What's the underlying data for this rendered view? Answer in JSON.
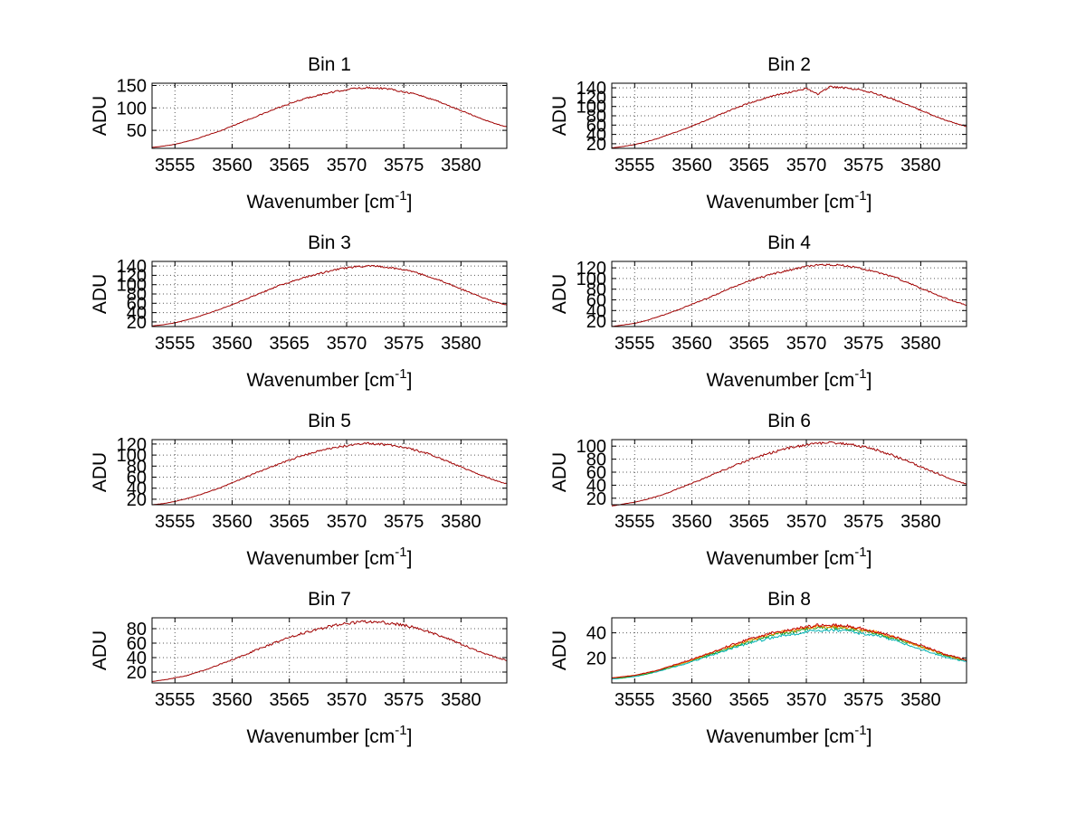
{
  "figure": {
    "background": "#ffffff",
    "description": "4x2 grid of spectral line plots"
  },
  "labels": {
    "xlabel_pre": "Wavenumber [cm",
    "xlabel_sup": "-1",
    "xlabel_post": "]",
    "ylabel": "ADU"
  },
  "chart_data": [
    {
      "type": "line",
      "id": "bin-1",
      "title": "Bin 1",
      "xlabel": "Wavenumber [cm⁻¹]",
      "ylabel": "ADU",
      "xlim": [
        3553,
        3584
      ],
      "ylim": [
        10,
        155
      ],
      "xticks": [
        3555,
        3560,
        3565,
        3570,
        3575,
        3580
      ],
      "yticks": [
        50,
        100,
        150
      ],
      "x_start": 3553,
      "x_step": 1,
      "grid": true,
      "noise": 2.0,
      "series": [
        {
          "name": "spectrum",
          "color": "#a00000",
          "values": [
            12,
            15,
            19,
            25,
            32,
            41,
            49,
            60,
            70,
            80,
            90,
            100,
            109,
            118,
            125,
            131,
            136,
            141,
            144,
            145,
            144,
            141,
            136,
            131,
            123,
            115,
            104,
            94,
            84,
            74,
            65,
            58
          ]
        }
      ]
    },
    {
      "type": "line",
      "id": "bin-2",
      "title": "Bin 2",
      "xlabel": "Wavenumber [cm⁻¹]",
      "ylabel": "ADU",
      "xlim": [
        3553,
        3584
      ],
      "ylim": [
        10,
        150
      ],
      "xticks": [
        3555,
        3560,
        3565,
        3570,
        3575,
        3580
      ],
      "yticks": [
        20,
        40,
        60,
        80,
        100,
        120,
        140
      ],
      "x_start": 3553,
      "x_step": 1,
      "grid": true,
      "noise": 2.0,
      "series": [
        {
          "name": "spectrum",
          "color": "#a00000",
          "values": [
            11,
            14,
            18,
            24,
            31,
            40,
            48,
            58,
            68,
            78,
            88,
            98,
            107,
            115,
            122,
            128,
            133,
            138,
            126,
            142,
            141,
            138,
            134,
            128,
            121,
            112,
            102,
            92,
            82,
            72,
            64,
            57
          ]
        }
      ]
    },
    {
      "type": "line",
      "id": "bin-3",
      "title": "Bin 3",
      "xlabel": "Wavenumber [cm⁻¹]",
      "ylabel": "ADU",
      "xlim": [
        3553,
        3584
      ],
      "ylim": [
        10,
        150
      ],
      "xticks": [
        3555,
        3560,
        3565,
        3570,
        3575,
        3580
      ],
      "yticks": [
        20,
        40,
        60,
        80,
        100,
        120,
        140
      ],
      "x_start": 3553,
      "x_step": 1,
      "grid": true,
      "noise": 2.0,
      "series": [
        {
          "name": "spectrum",
          "color": "#a00000",
          "values": [
            11,
            14,
            18,
            24,
            31,
            39,
            48,
            57,
            67,
            77,
            87,
            97,
            105,
            113,
            120,
            126,
            132,
            136,
            139,
            140,
            139,
            136,
            132,
            126,
            119,
            111,
            101,
            91,
            81,
            71,
            63,
            56
          ]
        }
      ]
    },
    {
      "type": "line",
      "id": "bin-4",
      "title": "Bin 4",
      "xlabel": "Wavenumber [cm⁻¹]",
      "ylabel": "ADU",
      "xlim": [
        3553,
        3584
      ],
      "ylim": [
        10,
        132
      ],
      "xticks": [
        3555,
        3560,
        3565,
        3570,
        3575,
        3580
      ],
      "yticks": [
        20,
        40,
        60,
        80,
        100,
        120
      ],
      "x_start": 3553,
      "x_step": 1,
      "grid": true,
      "noise": 2.0,
      "series": [
        {
          "name": "spectrum",
          "color": "#a00000",
          "values": [
            10,
            13,
            16,
            21,
            28,
            35,
            43,
            52,
            60,
            69,
            78,
            87,
            95,
            102,
            108,
            113,
            118,
            122,
            125,
            126,
            125,
            122,
            118,
            113,
            107,
            100,
            91,
            82,
            73,
            64,
            57,
            50
          ]
        }
      ]
    },
    {
      "type": "line",
      "id": "bin-5",
      "title": "Bin 5",
      "xlabel": "Wavenumber [cm⁻¹]",
      "ylabel": "ADU",
      "xlim": [
        3553,
        3584
      ],
      "ylim": [
        10,
        128
      ],
      "xticks": [
        3555,
        3560,
        3565,
        3570,
        3575,
        3580
      ],
      "yticks": [
        20,
        40,
        60,
        80,
        100,
        120
      ],
      "x_start": 3553,
      "x_step": 1,
      "grid": true,
      "noise": 2.0,
      "series": [
        {
          "name": "spectrum",
          "color": "#a00000",
          "values": [
            10,
            12,
            16,
            21,
            27,
            34,
            41,
            50,
            58,
            67,
            75,
            83,
            91,
            98,
            104,
            109,
            114,
            117,
            120,
            121,
            120,
            117,
            114,
            109,
            103,
            96,
            87,
            79,
            70,
            62,
            54,
            48
          ]
        }
      ]
    },
    {
      "type": "line",
      "id": "bin-6",
      "title": "Bin 6",
      "xlabel": "Wavenumber [cm⁻¹]",
      "ylabel": "ADU",
      "xlim": [
        3553,
        3584
      ],
      "ylim": [
        10,
        110
      ],
      "xticks": [
        3555,
        3560,
        3565,
        3570,
        3575,
        3580
      ],
      "yticks": [
        20,
        40,
        60,
        80,
        100
      ],
      "x_start": 3553,
      "x_step": 1,
      "grid": true,
      "noise": 2.0,
      "series": [
        {
          "name": "spectrum",
          "color": "#a00000",
          "values": [
            8,
            11,
            14,
            18,
            23,
            29,
            36,
            43,
            50,
            58,
            65,
            72,
            79,
            85,
            90,
            95,
            99,
            102,
            104,
            105,
            104,
            102,
            99,
            95,
            89,
            83,
            76,
            68,
            61,
            54,
            47,
            42
          ]
        }
      ]
    },
    {
      "type": "line",
      "id": "bin-7",
      "title": "Bin 7",
      "xlabel": "Wavenumber [cm⁻¹]",
      "ylabel": "ADU",
      "xlim": [
        3553,
        3584
      ],
      "ylim": [
        5,
        95
      ],
      "xticks": [
        3555,
        3560,
        3565,
        3570,
        3575,
        3580
      ],
      "yticks": [
        20,
        40,
        60,
        80
      ],
      "x_start": 3553,
      "x_step": 1,
      "grid": true,
      "noise": 2.0,
      "series": [
        {
          "name": "spectrum",
          "color": "#a00000",
          "values": [
            7,
            9,
            12,
            15,
            20,
            25,
            31,
            37,
            43,
            50,
            56,
            62,
            68,
            73,
            77,
            81,
            85,
            87,
            89,
            90,
            89,
            87,
            85,
            81,
            77,
            71,
            65,
            59,
            52,
            46,
            41,
            36
          ]
        }
      ]
    },
    {
      "type": "line",
      "id": "bin-8",
      "title": "Bin 8",
      "xlabel": "Wavenumber [cm⁻¹]",
      "ylabel": "ADU",
      "xlim": [
        3553,
        3584
      ],
      "ylim": [
        0,
        52
      ],
      "xticks": [
        3555,
        3560,
        3565,
        3570,
        3575,
        3580
      ],
      "yticks": [
        20,
        40
      ],
      "x_start": 3553,
      "x_step": 1,
      "grid": true,
      "noise": 1.2,
      "series": [
        {
          "name": "spectrum-cyan",
          "color": "#00b2b2",
          "values": [
            3,
            4,
            5,
            7,
            9,
            12,
            14,
            17,
            20,
            23,
            26,
            29,
            32,
            34,
            36,
            38,
            39,
            41,
            42,
            42,
            42,
            41,
            39,
            38,
            36,
            33,
            30,
            27,
            24,
            21,
            19,
            17
          ]
        },
        {
          "name": "spectrum-green",
          "color": "#1fa01f",
          "values": [
            4,
            4,
            6,
            7,
            10,
            12,
            15,
            18,
            21,
            24,
            27,
            30,
            33,
            36,
            38,
            40,
            41,
            43,
            44,
            44,
            44,
            43,
            41,
            40,
            37,
            35,
            32,
            29,
            26,
            22,
            20,
            18
          ]
        },
        {
          "name": "spectrum-orange",
          "color": "#ff8800",
          "values": [
            4,
            5,
            6,
            8,
            10,
            13,
            15,
            18,
            22,
            25,
            28,
            31,
            34,
            36,
            39,
            41,
            42,
            44,
            45,
            45,
            45,
            44,
            42,
            41,
            38,
            36,
            32,
            29,
            26,
            23,
            20,
            18
          ]
        },
        {
          "name": "spectrum-red",
          "color": "#c00000",
          "values": [
            4,
            5,
            6,
            8,
            10,
            13,
            16,
            19,
            22,
            25,
            29,
            32,
            35,
            37,
            40,
            41,
            43,
            45,
            46,
            46,
            46,
            45,
            43,
            41,
            39,
            36,
            33,
            30,
            27,
            23,
            21,
            18
          ]
        }
      ]
    }
  ]
}
